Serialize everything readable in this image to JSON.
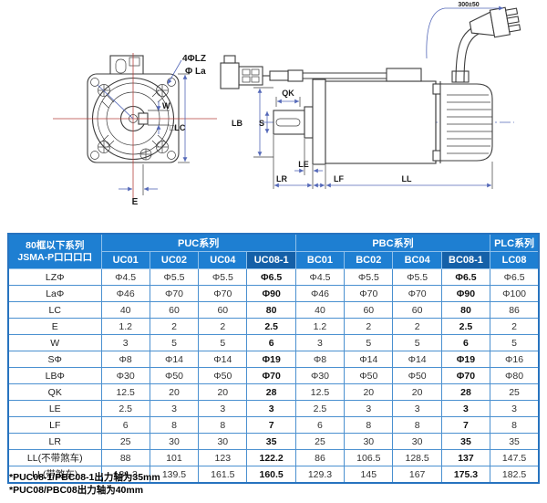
{
  "drawing": {
    "front": {
      "holes_label": "4ΦLZ",
      "bolt_circle_label": "Φ La",
      "key_width_label": "W",
      "frame_label": "□LC",
      "offset_label": "E"
    },
    "side": {
      "key_length_label": "QK",
      "pilot_label": "LB",
      "shaft_label": "S",
      "le_label": "LE",
      "lr_label": "LR",
      "lf_label": "LF",
      "ll_label": "LL",
      "cable_length_label": "300±50"
    }
  },
  "table": {
    "corner_header": {
      "line1": "80框以下系列",
      "line2": "JSMA-P口口口口"
    },
    "groups": [
      {
        "label": "PUC系列",
        "span": 4
      },
      {
        "label": "PBC系列",
        "span": 4
      },
      {
        "label": "PLC系列",
        "span": 1
      }
    ],
    "models": [
      "UC01",
      "UC02",
      "UC04",
      "UC08-1",
      "BC01",
      "BC02",
      "BC04",
      "BC08-1",
      "LC08"
    ],
    "highlight_columns": [
      3,
      7
    ],
    "rows": [
      {
        "label": "LZΦ",
        "values": [
          "Φ4.5",
          "Φ5.5",
          "Φ5.5",
          "Φ6.5",
          "Φ4.5",
          "Φ5.5",
          "Φ5.5",
          "Φ6.5",
          "Φ6.5"
        ]
      },
      {
        "label": "LaΦ",
        "values": [
          "Φ46",
          "Φ70",
          "Φ70",
          "Φ90",
          "Φ46",
          "Φ70",
          "Φ70",
          "Φ90",
          "Φ100"
        ]
      },
      {
        "label": "LC",
        "values": [
          "40",
          "60",
          "60",
          "80",
          "40",
          "60",
          "60",
          "80",
          "86"
        ]
      },
      {
        "label": "E",
        "values": [
          "1.2",
          "2",
          "2",
          "2.5",
          "1.2",
          "2",
          "2",
          "2.5",
          "2"
        ]
      },
      {
        "label": "W",
        "values": [
          "3",
          "5",
          "5",
          "6",
          "3",
          "5",
          "5",
          "6",
          "5"
        ]
      },
      {
        "label": "SΦ",
        "values": [
          "Φ8",
          "Φ14",
          "Φ14",
          "Φ19",
          "Φ8",
          "Φ14",
          "Φ14",
          "Φ19",
          "Φ16"
        ]
      },
      {
        "label": "LBΦ",
        "values": [
          "Φ30",
          "Φ50",
          "Φ50",
          "Φ70",
          "Φ30",
          "Φ50",
          "Φ50",
          "Φ70",
          "Φ80"
        ]
      },
      {
        "label": "QK",
        "values": [
          "12.5",
          "20",
          "20",
          "28",
          "12.5",
          "20",
          "20",
          "28",
          "25"
        ]
      },
      {
        "label": "LE",
        "values": [
          "2.5",
          "3",
          "3",
          "3",
          "2.5",
          "3",
          "3",
          "3",
          "3"
        ]
      },
      {
        "label": "LF",
        "values": [
          "6",
          "8",
          "8",
          "7",
          "6",
          "8",
          "8",
          "7",
          "8"
        ]
      },
      {
        "label": "LR",
        "values": [
          "25",
          "30",
          "30",
          "35",
          "25",
          "30",
          "30",
          "35",
          "35"
        ]
      },
      {
        "label": "LL(不带煞车)",
        "values": [
          "88",
          "101",
          "123",
          "122.2",
          "86",
          "106.5",
          "128.5",
          "137",
          "147.5"
        ]
      },
      {
        "label": "LL(带煞车)",
        "values": [
          "131.3",
          "139.5",
          "161.5",
          "160.5",
          "129.3",
          "145",
          "167",
          "175.3",
          "182.5"
        ]
      }
    ]
  },
  "footnotes": [
    "*PUC08-1/PBC08-1出力轴为35mm",
    "*PUC08/PBC08出力轴为40mm"
  ],
  "colors": {
    "header_blue": "#1e7fd2",
    "header_navy": "#1460a8",
    "table_border": "#4a90d0",
    "dimension_blue": "#5468b8",
    "centerline_red": "#b5413c"
  }
}
